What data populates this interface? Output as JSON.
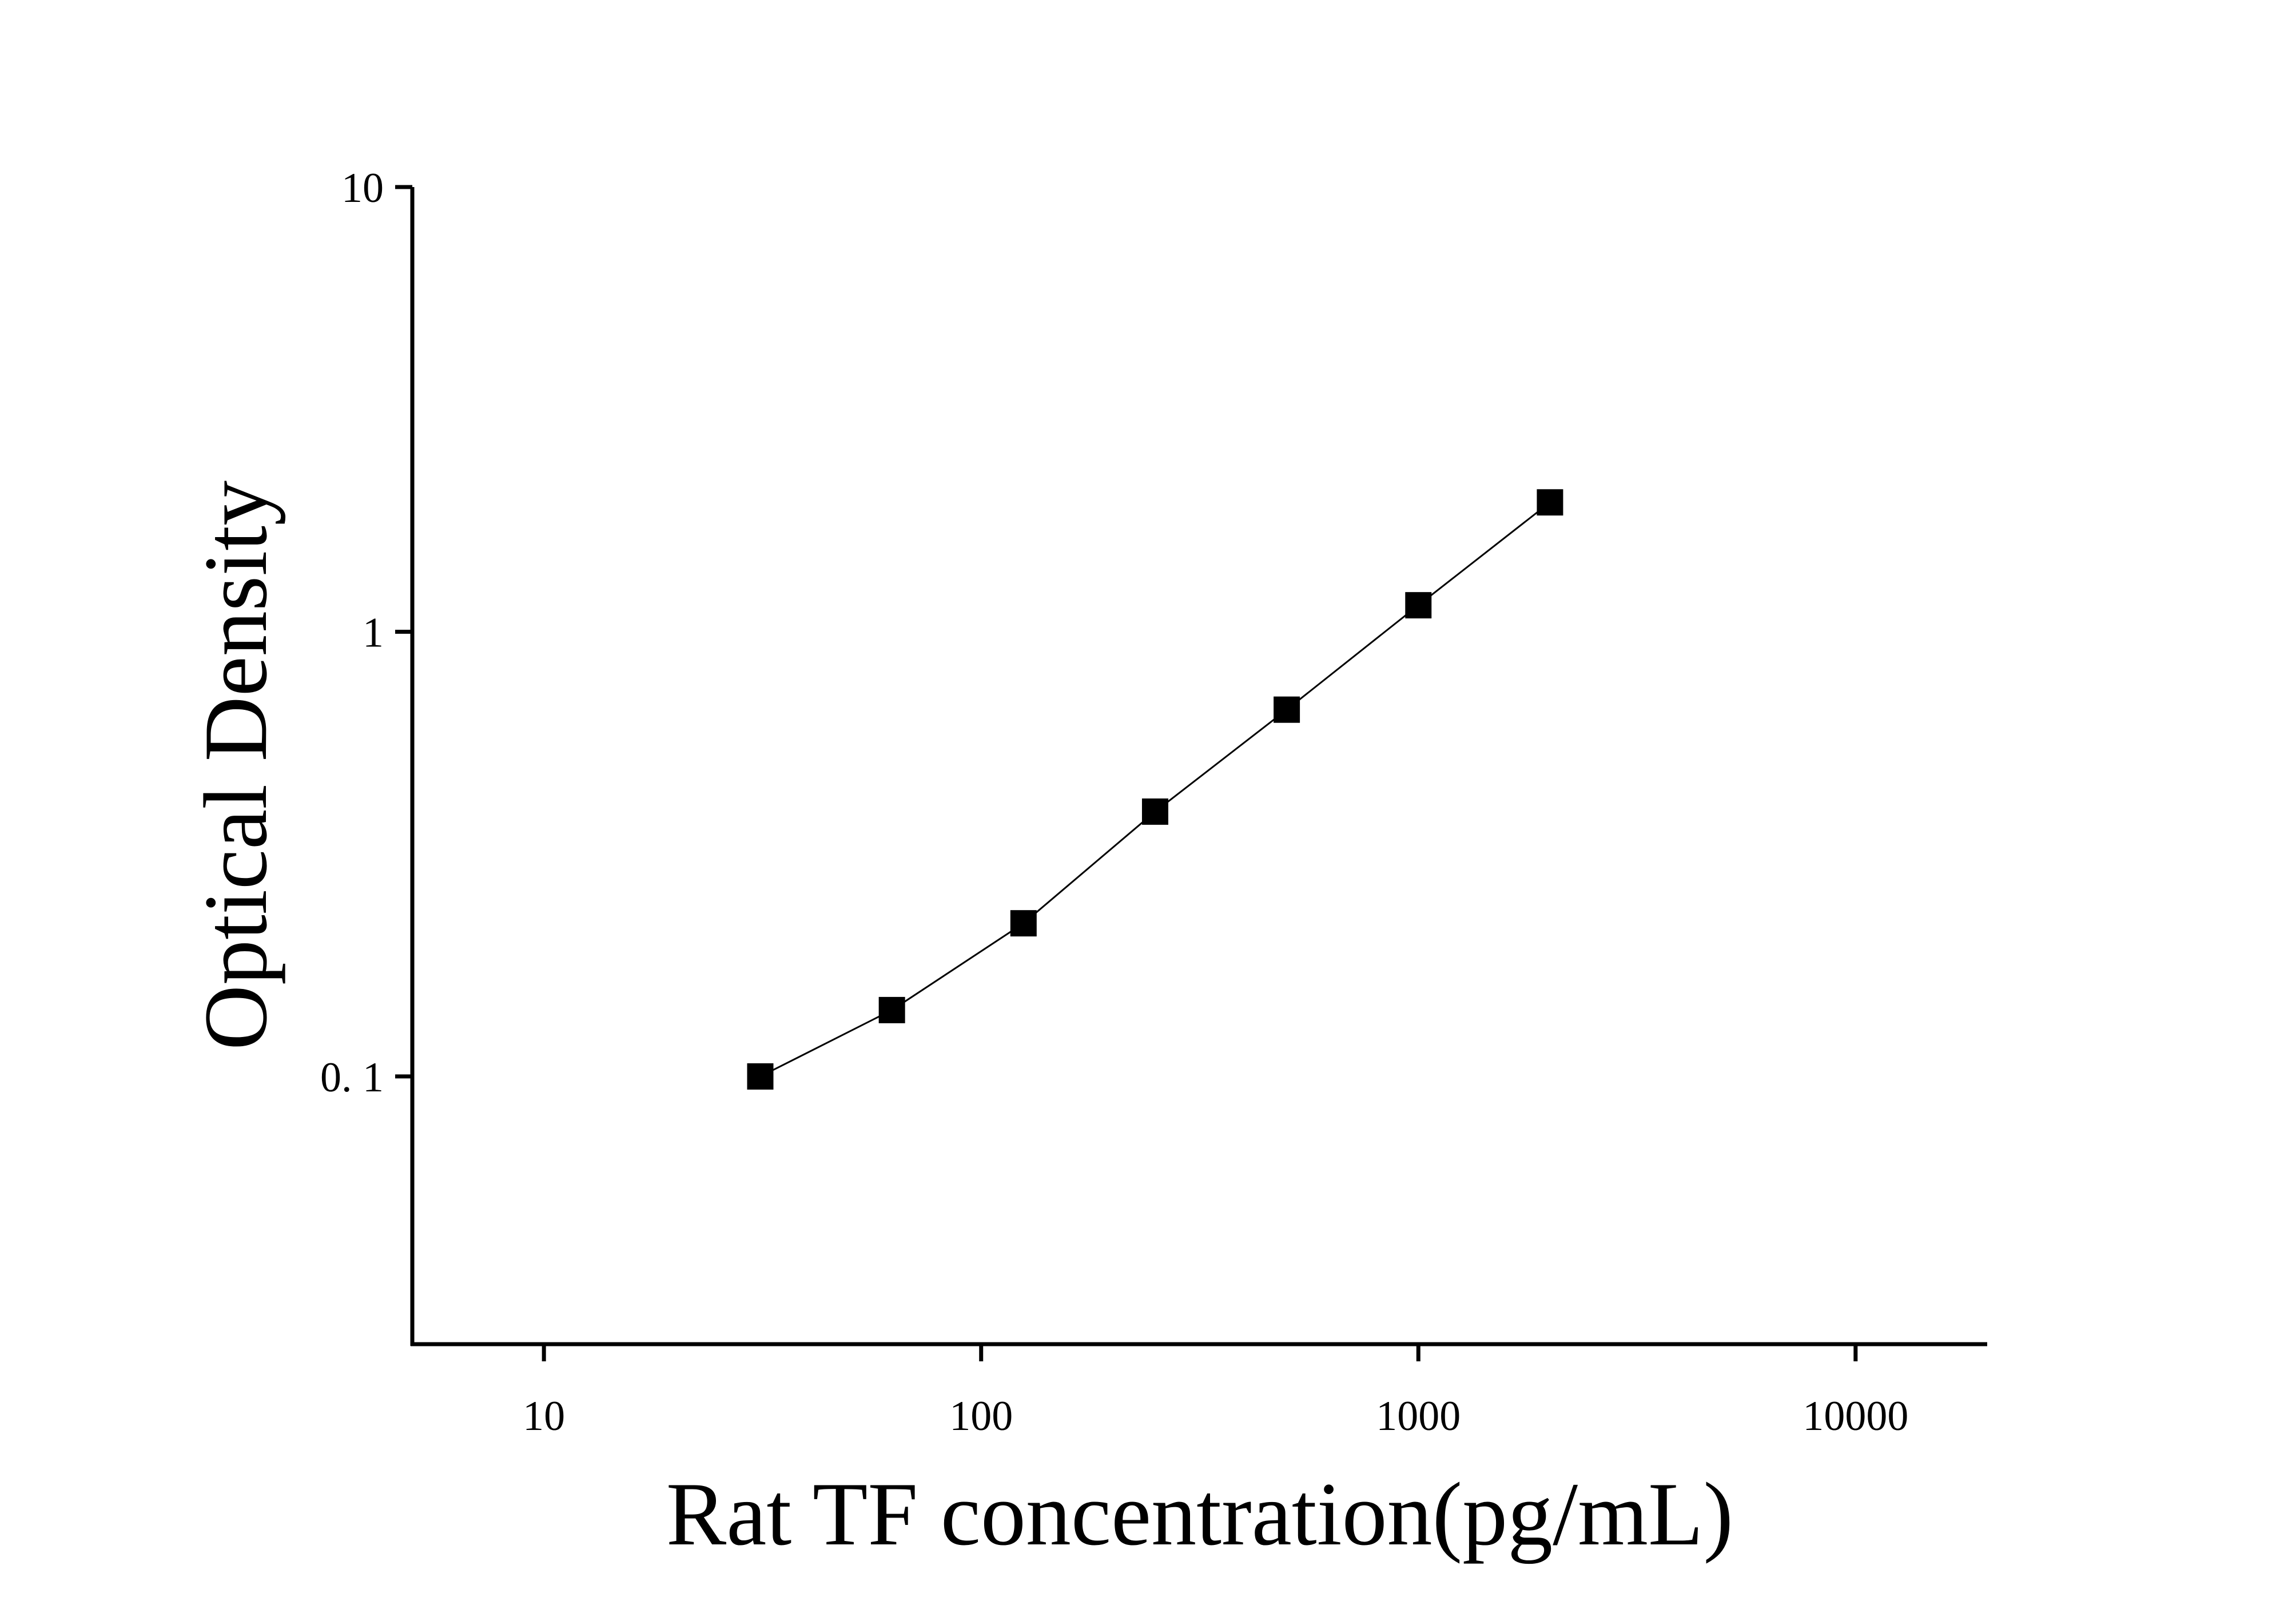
{
  "chart_data": {
    "type": "scatter",
    "x_label": "Rat TF concentration(pg/mL)",
    "y_label": "Optical Density",
    "x": [
      31.25,
      62.5,
      125,
      250,
      500,
      1000,
      2000
    ],
    "series": [
      {
        "values": [
          0.1,
          0.141,
          0.221,
          0.394,
          0.668,
          1.147,
          1.954
        ],
        "color": "#000000"
      }
    ],
    "fit_line": true,
    "xlog": true,
    "ylog": true,
    "xlim": [
      5,
      20000
    ],
    "ylim": [
      0.025,
      10
    ],
    "xticks": [
      10,
      100,
      1000,
      10000
    ],
    "yticks": [
      {
        "value": 0.1,
        "label": "0. 1"
      },
      1,
      10
    ]
  }
}
